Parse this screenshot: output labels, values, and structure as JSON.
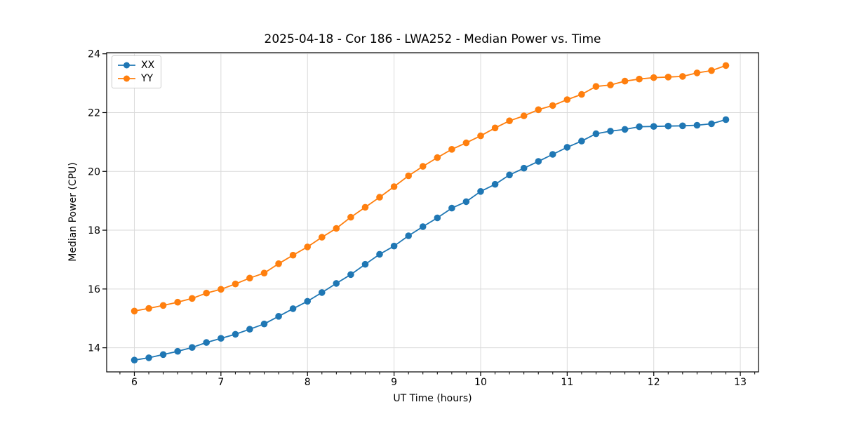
{
  "figure": {
    "background_color": "#ffffff",
    "spine_color": "#000000",
    "grid_color": "#dadada",
    "tick_color": "#000000",
    "text_color": "#000000"
  },
  "chart_data": {
    "type": "line",
    "title": "2025-04-18 - Cor 186 - LWA252 - Median Power vs. Time",
    "xlabel": "UT Time (hours)",
    "ylabel": "Median Power (CPU)",
    "grid": true,
    "legend_position": "upper left",
    "marker": "circle",
    "xlim": [
      5.68,
      13.21
    ],
    "ylim": [
      13.18,
      24.04
    ],
    "xticks": [
      6,
      7,
      8,
      9,
      10,
      11,
      12,
      13
    ],
    "xticklabels": [
      "6",
      "7",
      "8",
      "9",
      "10",
      "11",
      "12",
      "13"
    ],
    "x_minor_tick_step": 0.16667,
    "yticks": [
      14,
      16,
      18,
      20,
      22,
      24
    ],
    "yticklabels": [
      "14",
      "16",
      "18",
      "20",
      "22",
      "24"
    ],
    "x": [
      6.0,
      6.167,
      6.333,
      6.5,
      6.667,
      6.833,
      7.0,
      7.167,
      7.333,
      7.5,
      7.667,
      7.833,
      8.0,
      8.167,
      8.333,
      8.5,
      8.667,
      8.833,
      9.0,
      9.167,
      9.333,
      9.5,
      9.667,
      9.833,
      10.0,
      10.167,
      10.333,
      10.5,
      10.667,
      10.833,
      11.0,
      11.167,
      11.333,
      11.5,
      11.667,
      11.833,
      12.0,
      12.167,
      12.333,
      12.5,
      12.667,
      12.833
    ],
    "series": [
      {
        "name": "XX",
        "color": "#1f77b4",
        "values": [
          13.58,
          13.66,
          13.77,
          13.88,
          14.01,
          14.18,
          14.32,
          14.46,
          14.63,
          14.81,
          15.07,
          15.33,
          15.58,
          15.88,
          16.19,
          16.49,
          16.84,
          17.18,
          17.46,
          17.81,
          18.12,
          18.42,
          18.75,
          18.97,
          19.32,
          19.56,
          19.88,
          20.11,
          20.34,
          20.58,
          20.82,
          21.03,
          21.28,
          21.37,
          21.43,
          21.52,
          21.53,
          21.54,
          21.55,
          21.57,
          21.62,
          21.76
        ]
      },
      {
        "name": "YY",
        "color": "#ff7f0e",
        "values": [
          15.25,
          15.34,
          15.44,
          15.55,
          15.68,
          15.86,
          15.99,
          16.17,
          16.37,
          16.54,
          16.86,
          17.15,
          17.43,
          17.76,
          18.06,
          18.44,
          18.78,
          19.12,
          19.48,
          19.85,
          20.17,
          20.47,
          20.75,
          20.97,
          21.21,
          21.48,
          21.72,
          21.89,
          22.1,
          22.24,
          22.44,
          22.62,
          22.89,
          22.94,
          23.07,
          23.14,
          23.19,
          23.21,
          23.23,
          23.35,
          23.43,
          23.6
        ]
      }
    ]
  }
}
